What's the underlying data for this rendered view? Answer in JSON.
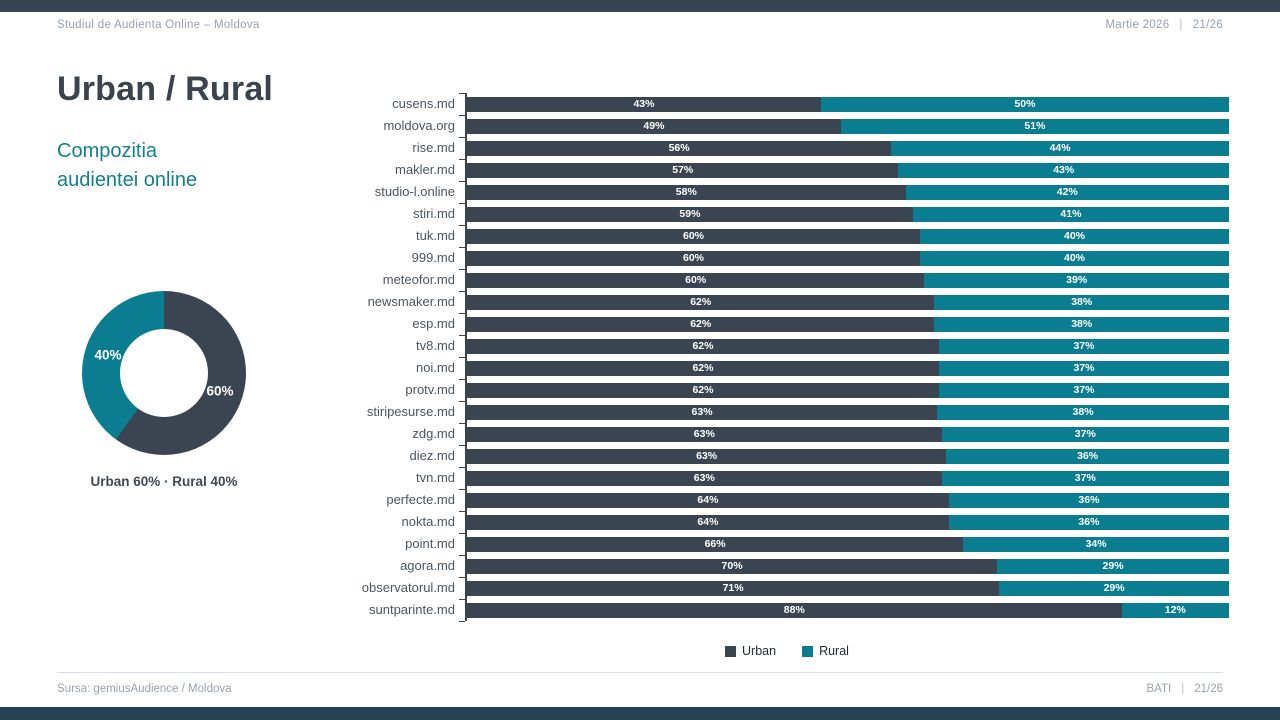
{
  "header": {
    "left": "Studiul de Audienta Online – Moldova",
    "date": "Martie 2026",
    "sep": "|",
    "page": "21/26"
  },
  "title": "Urban / Rural",
  "subtitle": {
    "line1": "Compozitia",
    "line2": "audientei online"
  },
  "colors": {
    "urban": "#3a4551",
    "rural": "#0a7d90",
    "accent_teal": "#11808f",
    "top_bar": "#364350",
    "bottom_bar": "#264054"
  },
  "chart_data": [
    {
      "type": "pie",
      "subtype": "donut",
      "title": "Urban / Rural - total online audience",
      "labels": [
        "Urban",
        "Rural"
      ],
      "values": [
        60,
        40
      ],
      "display_labels": [
        "60%",
        "40%"
      ],
      "colors": [
        "#3a4551",
        "#0a7d90"
      ],
      "start_angle": "top, clockwise, Urban first",
      "caption": "Urban 60%  ·  Rural 40%"
    },
    {
      "type": "bar",
      "subtype": "stacked-horizontal-100pct",
      "title": "Compozitia audientei online - Urban / Rural pe site-uri",
      "categories": [
        "cusens.md",
        "moldova.org",
        "rise.md",
        "makler.md",
        "studio-l.online",
        "stiri.md",
        "tuk.md",
        "999.md",
        "meteofor.md",
        "newsmaker.md",
        "esp.md",
        "tv8.md",
        "noi.md",
        "protv.md",
        "stiripesurse.md",
        "zdg.md",
        "diez.md",
        "tvn.md",
        "perfecte.md",
        "nokta.md",
        "point.md",
        "agora.md",
        "observatorul.md",
        "suntparinte.md"
      ],
      "series": [
        {
          "name": "Urban",
          "color": "#3a4551",
          "values": [
            43,
            49,
            56,
            57,
            58,
            59,
            60,
            60,
            60,
            62,
            62,
            62,
            62,
            62,
            63,
            63,
            63,
            63,
            64,
            64,
            66,
            70,
            71,
            88
          ]
        },
        {
          "name": "Rural",
          "color": "#0a7d90",
          "values": [
            50,
            51,
            44,
            43,
            42,
            41,
            40,
            40,
            39,
            38,
            38,
            37,
            37,
            37,
            38,
            37,
            36,
            37,
            36,
            36,
            34,
            29,
            29,
            12
          ]
        }
      ],
      "value_labels": "percent shown inside each segment",
      "legend_position": "bottom-center",
      "grid": "off",
      "axis": "category axis on left with tick marks"
    }
  ],
  "footer": {
    "left": "Sursa: gemiusAudience / Moldova",
    "brand": "BATI",
    "sep": "|",
    "page": "21/26"
  }
}
